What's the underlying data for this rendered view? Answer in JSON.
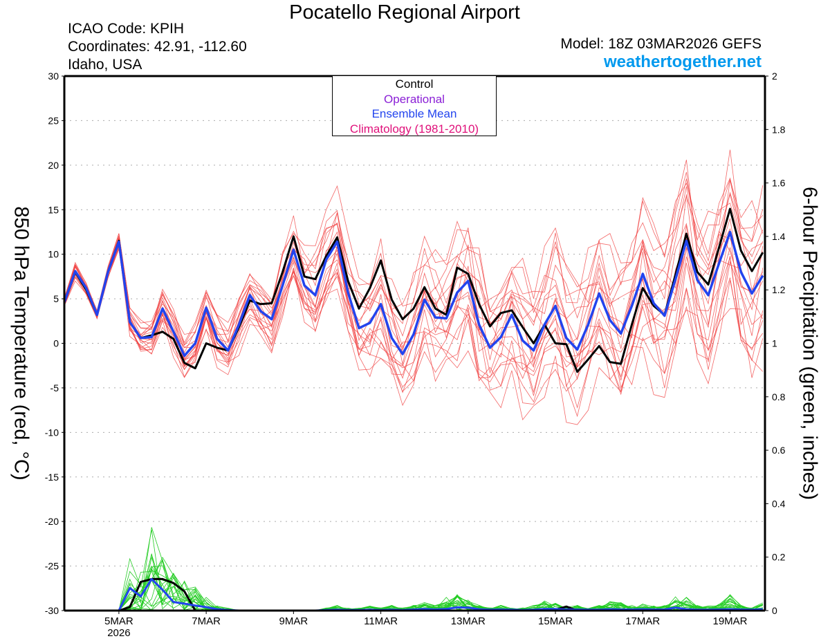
{
  "header": {
    "title": "Pocatello Regional Airport",
    "icao": "ICAO Code: KPIH",
    "coordinates": "Coordinates: 42.91, -112.60",
    "region": "Idaho, USA",
    "model": "Model: 18Z 03MAR2026 GEFS",
    "site": "weathertogether.net"
  },
  "legend": {
    "items": [
      {
        "label": "Control",
        "color": "#000000"
      },
      {
        "label": "Operational",
        "color": "#8a1fd6"
      },
      {
        "label": "Ensemble Mean",
        "color": "#2244ee"
      },
      {
        "label": "Climatology (1981-2010)",
        "color": "#e0107a"
      }
    ]
  },
  "colors": {
    "temperature_members": "#f04040",
    "precip_members": "#22cc22",
    "control": "#000000",
    "mean": "#2244ee",
    "grid": "#aaaaaa",
    "site": "#0099ee"
  },
  "chart_data": {
    "type": "line",
    "title": "Pocatello Regional Airport",
    "xlabel": "",
    "ylabel_left": "850 hPa Temperature (red, °C)",
    "ylabel_right": "6-hour Precipitation (green, inches)",
    "x_start": "03MAR2026 18Z",
    "x_step_hours": 6,
    "x_ticks": [
      {
        "step": 5,
        "label": "5MAR",
        "sub": "2026"
      },
      {
        "step": 13,
        "label": "7MAR"
      },
      {
        "step": 21,
        "label": "9MAR"
      },
      {
        "step": 29,
        "label": "11MAR"
      },
      {
        "step": 37,
        "label": "13MAR"
      },
      {
        "step": 45,
        "label": "15MAR"
      },
      {
        "step": 53,
        "label": "17MAR"
      },
      {
        "step": 61,
        "label": "19MAR"
      }
    ],
    "x_range_steps": [
      0,
      64.2
    ],
    "ylim_left": [
      -30,
      30
    ],
    "yticks_left": [
      30,
      25,
      20,
      15,
      10,
      5,
      0,
      -5,
      -10,
      -15,
      -20,
      -25,
      -30
    ],
    "ylim_right": [
      0,
      2
    ],
    "yticks_right": [
      "2",
      "1.8",
      "1.6",
      "1.4",
      "1.2",
      "1",
      "0.8",
      "0.6",
      "0.4",
      "0.2",
      "0"
    ],
    "grid": true,
    "legend_position": "top-center",
    "temperature": {
      "control": [
        4.6,
        8.0,
        6.0,
        3.2,
        8.0,
        11.5,
        2.4,
        0.6,
        0.9,
        1.3,
        0.5,
        -2.2,
        -2.8,
        0.0,
        -0.5,
        -0.8,
        1.8,
        4.8,
        4.4,
        4.5,
        8.0,
        12.0,
        7.5,
        7.2,
        9.8,
        11.9,
        7.0,
        3.9,
        6.2,
        9.3,
        4.9,
        2.7,
        3.9,
        6.3,
        3.9,
        3.2,
        8.5,
        7.8,
        4.4,
        1.9,
        3.4,
        3.7,
        1.8,
        0.0,
        2.1,
        0.0,
        -0.1,
        -3.2,
        -1.8,
        -0.3,
        -2.1,
        -2.3,
        2.1,
        6.2,
        4.2,
        3.2,
        7.7,
        12.3,
        8.0,
        6.6,
        10.8,
        15.1,
        10.4,
        8.1,
        10.2
      ],
      "ensemble_mean": [
        4.6,
        8.1,
        6.2,
        3.2,
        8.0,
        11.4,
        2.4,
        0.6,
        0.7,
        3.9,
        1.3,
        -1.4,
        0.0,
        4.0,
        0.5,
        -0.8,
        2.1,
        5.4,
        3.6,
        2.7,
        6.5,
        10.5,
        6.5,
        5.4,
        9.4,
        11.4,
        5.7,
        1.7,
        2.3,
        4.4,
        0.6,
        -1.2,
        1.0,
        4.9,
        2.9,
        2.8,
        5.7,
        7.0,
        2.1,
        -0.5,
        0.7,
        3.2,
        0.3,
        -0.8,
        2.1,
        4.2,
        0.6,
        -0.7,
        2.1,
        5.6,
        2.6,
        1.1,
        4.2,
        7.8,
        4.5,
        3.1,
        7.2,
        11.5,
        7.1,
        5.4,
        9.0,
        12.5,
        8.0,
        5.6,
        7.6
      ],
      "member_spread_deg": [
        0.5,
        0.8,
        0.6,
        0.4,
        0.5,
        0.7,
        1.2,
        1.4,
        1.6,
        1.8,
        2.0,
        2.0,
        2.2,
        2.4,
        2.4,
        2.4,
        2.6,
        2.6,
        2.6,
        2.8,
        3.0,
        3.2,
        3.6,
        4.0,
        4.2,
        4.4,
        4.6,
        4.8,
        5.0,
        5.2,
        5.4,
        5.4,
        5.6,
        5.6,
        5.8,
        5.8,
        6.0,
        6.0,
        6.0,
        6.2,
        6.2,
        6.4,
        6.4,
        6.4,
        6.6,
        6.6,
        6.6,
        6.8,
        6.8,
        6.8,
        7.0,
        7.0,
        7.0,
        7.2,
        7.2,
        7.2,
        7.4,
        7.4,
        7.4,
        7.6,
        7.6,
        7.6,
        7.8,
        7.8,
        7.8
      ],
      "member_offsets": [
        -1.0,
        -0.8,
        -0.65,
        -0.5,
        -0.4,
        -0.3,
        -0.2,
        -0.1,
        0.0,
        0.1,
        0.2,
        0.3,
        0.4,
        0.5,
        0.65,
        0.8,
        1.0,
        -0.9,
        0.9,
        -0.55
      ]
    },
    "precipitation": {
      "control": [
        0,
        0,
        0,
        0,
        0,
        0,
        0.013,
        0.107,
        0.118,
        0.118,
        0.103,
        0.072,
        0,
        0,
        0,
        0,
        0,
        0,
        0,
        0,
        0,
        0,
        0,
        0,
        0,
        0,
        0,
        0,
        0,
        0,
        0,
        0,
        0,
        0,
        0,
        0,
        0,
        0,
        0,
        0,
        0,
        0,
        0,
        0,
        0,
        0.003,
        0.015,
        0,
        0,
        0,
        0,
        0,
        0,
        0,
        0,
        0,
        0,
        0,
        0,
        0,
        0,
        0,
        0,
        0,
        0
      ],
      "ensemble_mean": [
        0,
        0,
        0,
        0,
        0,
        0,
        0.084,
        0.053,
        0.118,
        0.078,
        0.032,
        0.026,
        0.019,
        0.013,
        0.005,
        0.002,
        0,
        0,
        0,
        0,
        0,
        0,
        0,
        0,
        0.002,
        0.003,
        0.002,
        0.002,
        0.003,
        0.002,
        0.003,
        0.002,
        0.004,
        0.006,
        0.004,
        0.006,
        0.012,
        0.011,
        0.005,
        0.003,
        0.004,
        0.003,
        0.002,
        0.003,
        0.006,
        0.006,
        0.004,
        0.004,
        0.003,
        0.003,
        0.005,
        0.004,
        0.004,
        0.005,
        0.004,
        0.004,
        0.011,
        0.005,
        0.003,
        0.003,
        0.004,
        0.005,
        0.004,
        0.003,
        0.005
      ],
      "member_max": [
        0,
        0,
        0,
        0,
        0,
        0,
        0.2,
        0.16,
        0.33,
        0.22,
        0.14,
        0.12,
        0.09,
        0.06,
        0.02,
        0.01,
        0,
        0,
        0,
        0,
        0,
        0,
        0,
        0,
        0.01,
        0.02,
        0.01,
        0.01,
        0.02,
        0.01,
        0.02,
        0.01,
        0.02,
        0.03,
        0.02,
        0.05,
        0.06,
        0.04,
        0.02,
        0.01,
        0.02,
        0.01,
        0.01,
        0.02,
        0.04,
        0.03,
        0.02,
        0.02,
        0.01,
        0.02,
        0.04,
        0.03,
        0.02,
        0.03,
        0.02,
        0.02,
        0.06,
        0.05,
        0.02,
        0.02,
        0.03,
        0.06,
        0.02,
        0.01,
        0.03
      ]
    }
  }
}
